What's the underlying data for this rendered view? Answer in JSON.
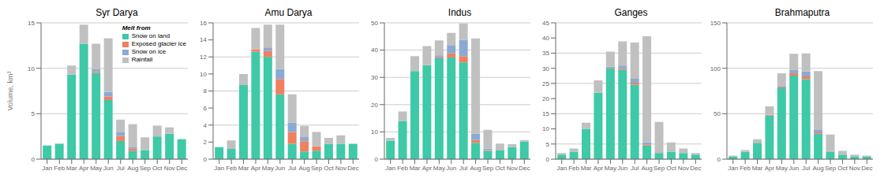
{
  "chart_data": [
    {
      "type": "bar",
      "stacked": true,
      "title": "Syr Darya",
      "ylabel": "Volume, km³",
      "legend": "upper right",
      "legend_title": "Melt from",
      "grid": true,
      "categories": [
        "Jan",
        "Feb",
        "Mar",
        "Apr",
        "May",
        "Jun",
        "Jul",
        "Aug",
        "Sep",
        "Oct",
        "Nov",
        "Dec"
      ],
      "ylim": [
        0,
        15
      ],
      "yticks": [
        0,
        5,
        10,
        15
      ],
      "series": [
        {
          "name": "Snow on land",
          "color": "#3ec9a7",
          "values": [
            1.5,
            1.7,
            9.3,
            12.7,
            9.5,
            6.5,
            2.0,
            0.9,
            1.0,
            2.5,
            2.8,
            2.2
          ]
        },
        {
          "name": "Exposed glacier ice",
          "color": "#f08060",
          "values": [
            0.0,
            0.0,
            0.0,
            0.0,
            0.15,
            0.4,
            0.55,
            0.25,
            0.0,
            0.0,
            0.0,
            0.0
          ]
        },
        {
          "name": "Snow on ice",
          "color": "#8aaad4",
          "values": [
            0.0,
            0.0,
            0.0,
            0.0,
            0.25,
            0.5,
            0.4,
            0.2,
            0.0,
            0.0,
            0.0,
            0.0
          ]
        },
        {
          "name": "Rainfall",
          "color": "#c0c0c0",
          "values": [
            0.0,
            0.0,
            1.0,
            2.1,
            2.8,
            5.9,
            1.4,
            2.5,
            1.4,
            1.2,
            0.7,
            0.0
          ]
        }
      ]
    },
    {
      "type": "bar",
      "stacked": true,
      "title": "Amu Darya",
      "grid": true,
      "categories": [
        "Jan",
        "Feb",
        "Mar",
        "Apr",
        "May",
        "Jun",
        "Jul",
        "Aug",
        "Sep",
        "Oct",
        "Nov",
        "Dec"
      ],
      "ylim": [
        0,
        16
      ],
      "yticks": [
        0,
        2,
        4,
        6,
        8,
        10,
        12,
        14,
        16
      ],
      "series": [
        {
          "name": "Snow on land",
          "color": "#3ec9a7",
          "values": [
            1.4,
            1.2,
            8.7,
            12.6,
            12.0,
            7.6,
            1.8,
            0.9,
            1.0,
            1.8,
            1.8,
            1.8
          ]
        },
        {
          "name": "Exposed glacier ice",
          "color": "#f08060",
          "values": [
            0.0,
            0.0,
            0.0,
            0.3,
            0.7,
            1.8,
            1.4,
            1.2,
            0.5,
            0.0,
            0.0,
            0.0
          ]
        },
        {
          "name": "Snow on ice",
          "color": "#8aaad4",
          "values": [
            0.0,
            0.0,
            0.0,
            0.0,
            0.4,
            1.2,
            1.1,
            0.5,
            0.0,
            0.0,
            0.0,
            0.0
          ]
        },
        {
          "name": "Rainfall",
          "color": "#c0c0c0",
          "values": [
            0.0,
            1.0,
            1.3,
            2.5,
            2.7,
            5.2,
            3.3,
            1.3,
            1.7,
            0.7,
            1.0,
            0.0
          ]
        }
      ]
    },
    {
      "type": "bar",
      "stacked": true,
      "title": "Indus",
      "grid": true,
      "categories": [
        "Jan",
        "Feb",
        "Mar",
        "Apr",
        "May",
        "Jun",
        "Jul",
        "Aug",
        "Sep",
        "Oct",
        "Nov",
        "Dec"
      ],
      "ylim": [
        0,
        50
      ],
      "yticks": [
        0,
        10,
        20,
        30,
        40,
        50
      ],
      "series": [
        {
          "name": "Snow on land",
          "color": "#3ec9a7",
          "values": [
            6.8,
            14.0,
            32.3,
            34.5,
            37.0,
            37.3,
            35.5,
            6.0,
            3.0,
            3.2,
            4.5,
            6.5
          ]
        },
        {
          "name": "Exposed glacier ice",
          "color": "#f08060",
          "values": [
            0.0,
            0.0,
            0.0,
            0.0,
            0.4,
            1.5,
            2.3,
            1.0,
            0.3,
            0.0,
            0.0,
            0.0
          ]
        },
        {
          "name": "Snow on ice",
          "color": "#8aaad4",
          "values": [
            0.0,
            0.0,
            0.0,
            0.0,
            0.7,
            3.0,
            6.0,
            2.3,
            0.5,
            0.0,
            0.0,
            0.0
          ]
        },
        {
          "name": "Rainfall",
          "color": "#c0c0c0",
          "values": [
            1.0,
            3.5,
            5.5,
            7.0,
            5.5,
            4.5,
            6.0,
            35.0,
            7.0,
            2.5,
            1.0,
            0.5
          ]
        }
      ]
    },
    {
      "type": "bar",
      "stacked": true,
      "title": "Ganges",
      "grid": true,
      "categories": [
        "Jan",
        "Feb",
        "Mar",
        "Apr",
        "May",
        "Jun",
        "Jul",
        "Aug",
        "Sep",
        "Oct",
        "Nov",
        "Dec"
      ],
      "ylim": [
        0,
        45
      ],
      "yticks": [
        0,
        5,
        10,
        15,
        20,
        25,
        30,
        35,
        40,
        45
      ],
      "series": [
        {
          "name": "Snow on land",
          "color": "#3ec9a7",
          "values": [
            1.5,
            2.5,
            10.0,
            22.0,
            30.0,
            29.5,
            24.5,
            4.5,
            2.0,
            2.5,
            2.0,
            1.5
          ]
        },
        {
          "name": "Exposed glacier ice",
          "color": "#f08060",
          "values": [
            0.0,
            0.0,
            0.0,
            0.0,
            0.2,
            0.5,
            0.7,
            0.4,
            0.1,
            0.0,
            0.0,
            0.0
          ]
        },
        {
          "name": "Snow on ice",
          "color": "#8aaad4",
          "values": [
            0.0,
            0.0,
            0.0,
            0.0,
            0.3,
            0.9,
            1.3,
            0.7,
            0.2,
            0.0,
            0.0,
            0.0
          ]
        },
        {
          "name": "Rainfall",
          "color": "#c0c0c0",
          "values": [
            0.5,
            1.0,
            2.0,
            4.0,
            5.0,
            8.0,
            12.0,
            35.0,
            10.0,
            3.0,
            1.5,
            0.5
          ]
        }
      ]
    },
    {
      "type": "bar",
      "stacked": true,
      "title": "Brahmaputra",
      "grid": true,
      "categories": [
        "Jan",
        "Feb",
        "Mar",
        "Apr",
        "May",
        "Jun",
        "Jul",
        "Aug",
        "Sep",
        "Oct",
        "Nov",
        "Dec"
      ],
      "ylim": [
        0,
        150
      ],
      "yticks": [
        0,
        50,
        100,
        150
      ],
      "series": [
        {
          "name": "Snow on land",
          "color": "#3ec9a7",
          "values": [
            3.0,
            8.0,
            18.0,
            48.0,
            78.0,
            92.0,
            88.0,
            28.0,
            8.0,
            5.0,
            3.0,
            3.0
          ]
        },
        {
          "name": "Exposed glacier ice",
          "color": "#f08060",
          "values": [
            0.0,
            0.0,
            0.0,
            0.5,
            1.0,
            2.5,
            3.0,
            1.5,
            0.5,
            0.0,
            0.0,
            0.0
          ]
        },
        {
          "name": "Snow on ice",
          "color": "#8aaad4",
          "values": [
            0.0,
            0.0,
            0.0,
            0.5,
            1.5,
            3.5,
            5.5,
            2.5,
            0.7,
            0.0,
            0.0,
            0.0
          ]
        },
        {
          "name": "Rainfall",
          "color": "#c0c0c0",
          "values": [
            1.0,
            2.0,
            4.0,
            9.0,
            14.0,
            18.0,
            20.0,
            65.0,
            18.0,
            4.0,
            2.0,
            1.0
          ]
        }
      ]
    }
  ]
}
